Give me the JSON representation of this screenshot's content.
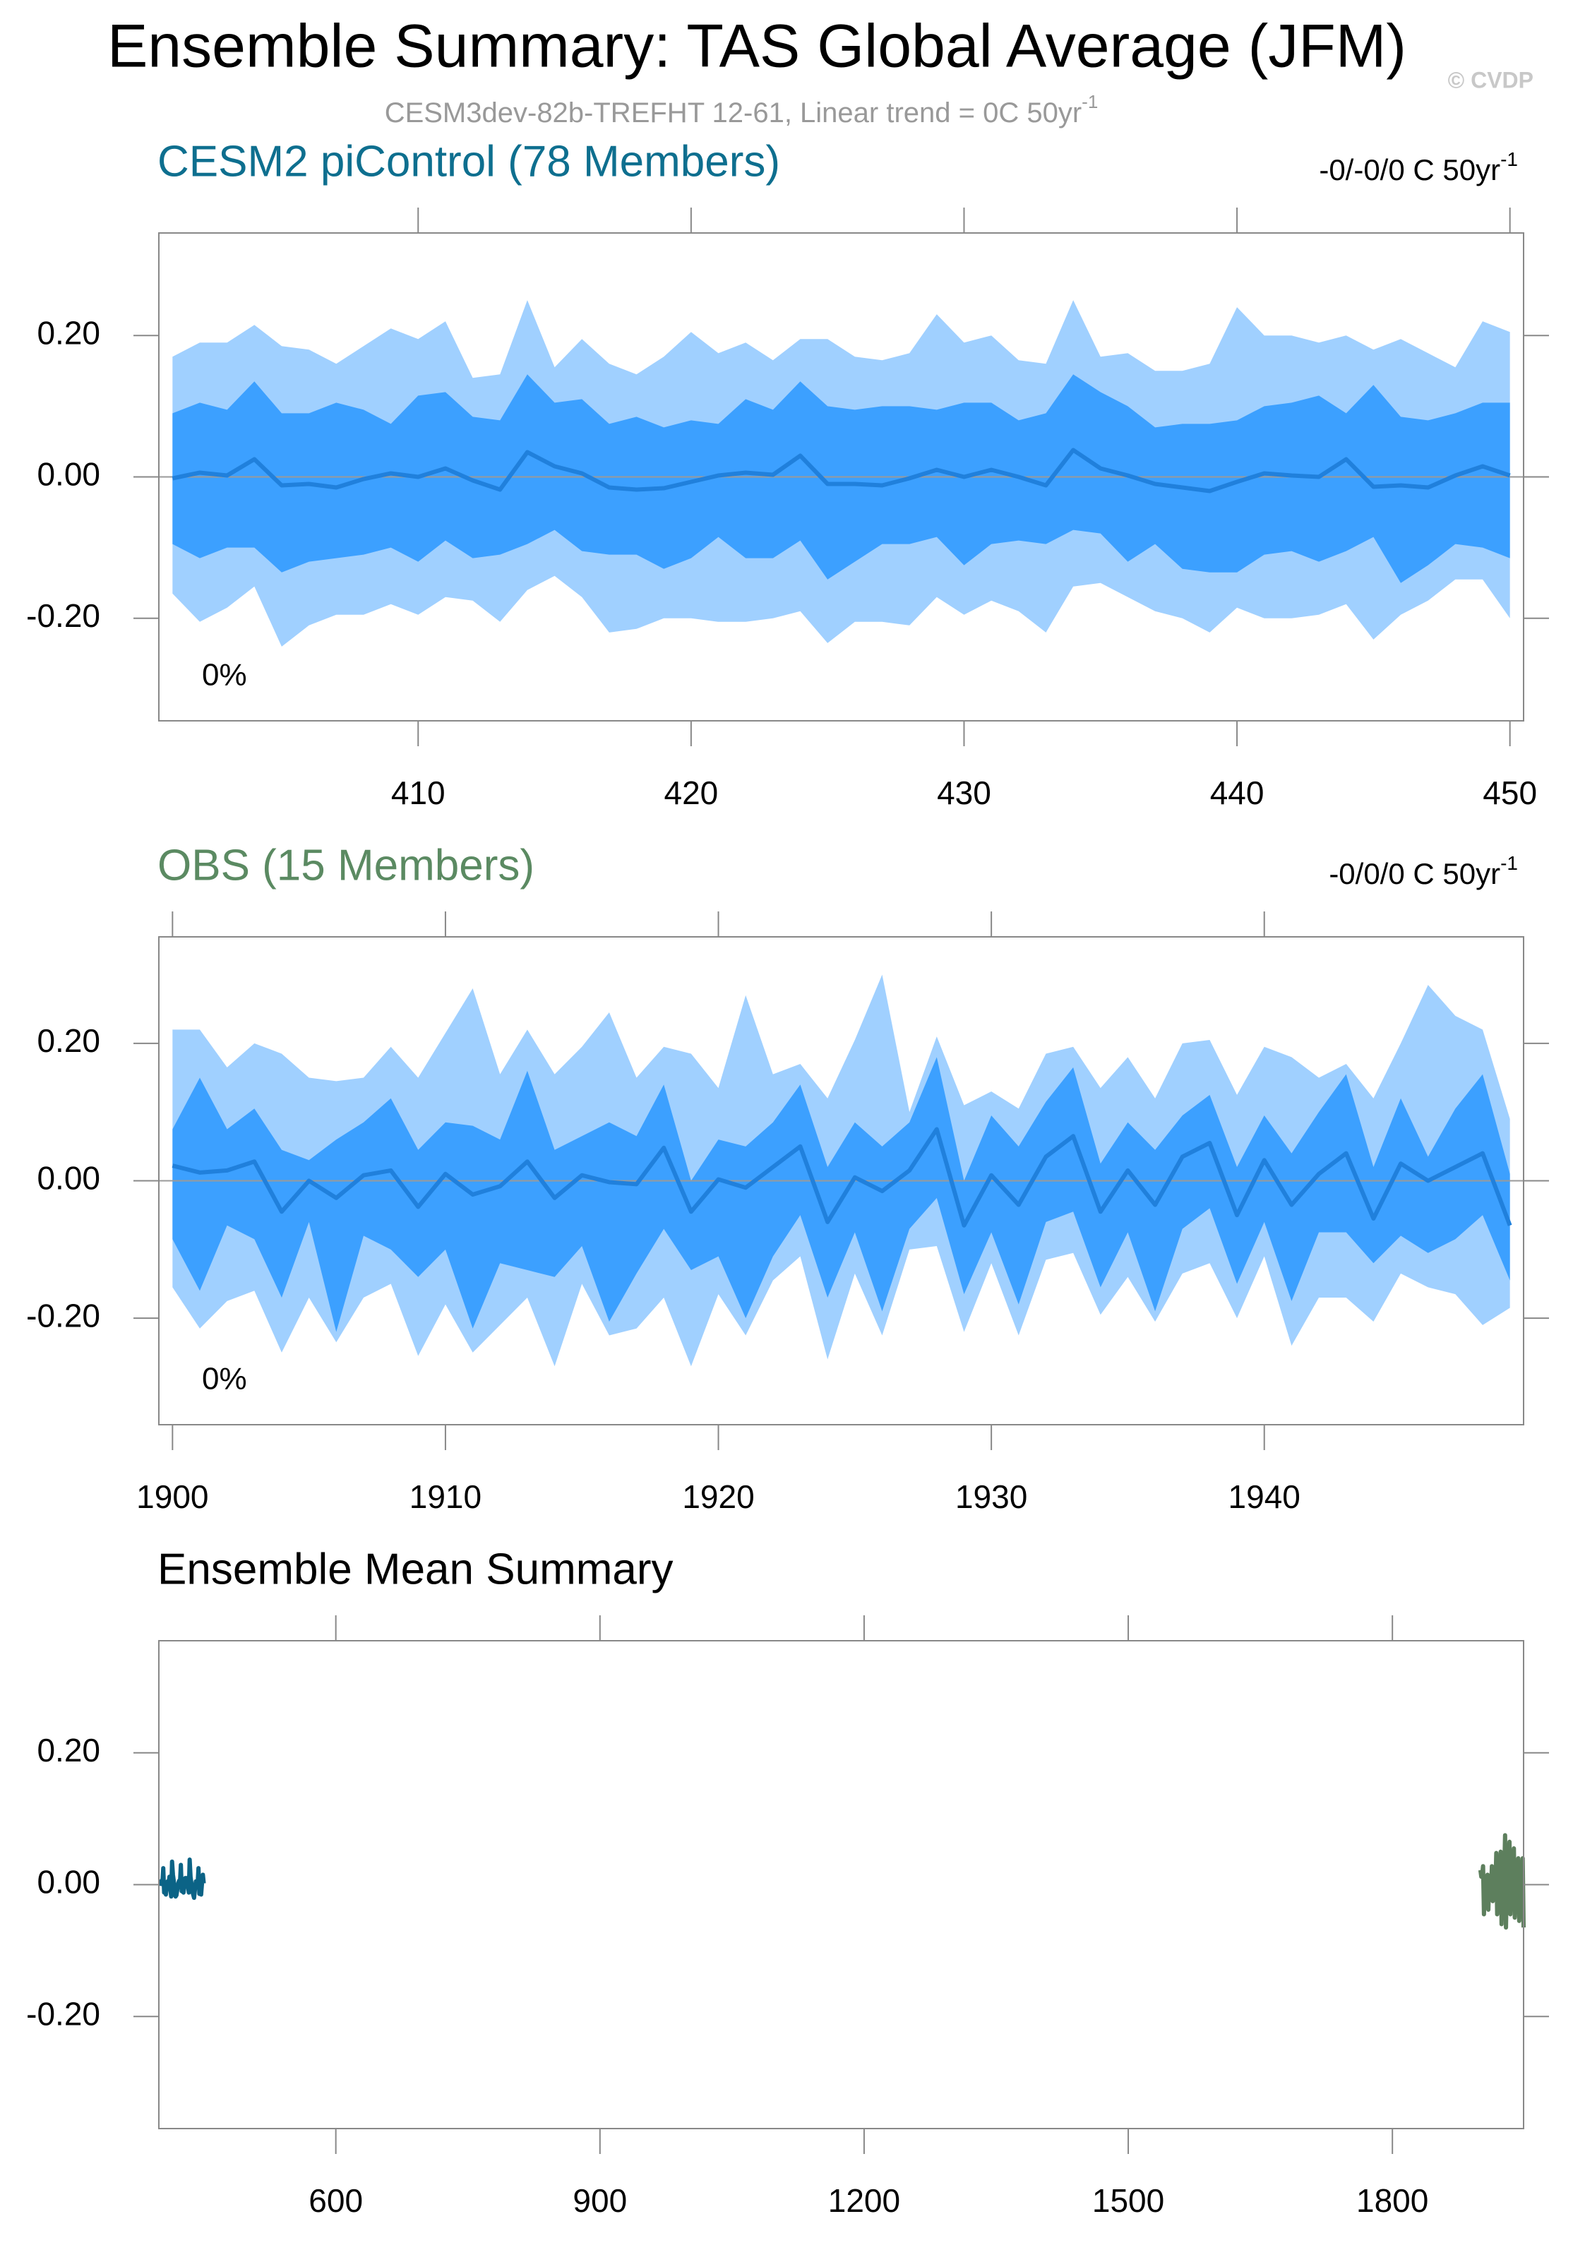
{
  "header": {
    "title": "Ensemble Summary: TAS Global Average (JFM)",
    "subtitle": "CESM3dev-82b-TREFHT 12-61, Linear trend = 0C 50yr",
    "subtitle_sup": "-1",
    "copyright": "© CVDP"
  },
  "chart_data": [
    {
      "type": "band",
      "title": "CESM2 piControl (78 Members)",
      "title_color": "#0e6f8f",
      "trend_label": "-0/-0/0 C 50yr",
      "trend_sup": "-1",
      "annotation": "0%",
      "x": [
        401,
        402,
        403,
        404,
        405,
        406,
        407,
        408,
        409,
        410,
        411,
        412,
        413,
        414,
        415,
        416,
        417,
        418,
        419,
        420,
        421,
        422,
        423,
        424,
        425,
        426,
        427,
        428,
        429,
        430,
        431,
        432,
        433,
        434,
        435,
        436,
        437,
        438,
        439,
        440,
        441,
        442,
        443,
        444,
        445,
        446,
        447,
        448,
        449,
        450
      ],
      "bands": [
        {
          "color": "#a0d0ff",
          "upper": [
            0.17,
            0.19,
            0.19,
            0.215,
            0.185,
            0.18,
            0.16,
            0.185,
            0.21,
            0.195,
            0.22,
            0.14,
            0.145,
            0.25,
            0.155,
            0.195,
            0.16,
            0.145,
            0.17,
            0.205,
            0.175,
            0.19,
            0.165,
            0.195,
            0.195,
            0.17,
            0.165,
            0.175,
            0.23,
            0.19,
            0.2,
            0.165,
            0.16,
            0.25,
            0.17,
            0.175,
            0.15,
            0.15,
            0.16,
            0.24,
            0.2,
            0.2,
            0.19,
            0.2,
            0.18,
            0.195,
            0.175,
            0.155,
            0.22,
            0.205
          ],
          "lower": [
            -0.165,
            -0.205,
            -0.185,
            -0.155,
            -0.24,
            -0.21,
            -0.195,
            -0.195,
            -0.18,
            -0.195,
            -0.17,
            -0.175,
            -0.205,
            -0.16,
            -0.14,
            -0.17,
            -0.22,
            -0.215,
            -0.2,
            -0.2,
            -0.205,
            -0.205,
            -0.2,
            -0.19,
            -0.235,
            -0.205,
            -0.205,
            -0.21,
            -0.17,
            -0.195,
            -0.175,
            -0.19,
            -0.22,
            -0.155,
            -0.15,
            -0.17,
            -0.19,
            -0.2,
            -0.22,
            -0.185,
            -0.2,
            -0.2,
            -0.195,
            -0.18,
            -0.23,
            -0.195,
            -0.175,
            -0.145,
            -0.145,
            -0.2
          ]
        },
        {
          "color": "#3ca0ff",
          "upper": [
            0.09,
            0.105,
            0.095,
            0.135,
            0.09,
            0.09,
            0.105,
            0.095,
            0.075,
            0.115,
            0.12,
            0.085,
            0.08,
            0.145,
            0.105,
            0.11,
            0.075,
            0.085,
            0.07,
            0.08,
            0.075,
            0.11,
            0.095,
            0.135,
            0.1,
            0.095,
            0.1,
            0.1,
            0.095,
            0.105,
            0.105,
            0.08,
            0.09,
            0.145,
            0.12,
            0.1,
            0.07,
            0.075,
            0.075,
            0.08,
            0.1,
            0.105,
            0.115,
            0.09,
            0.13,
            0.085,
            0.08,
            0.09,
            0.105,
            0.105
          ],
          "lower": [
            -0.095,
            -0.115,
            -0.1,
            -0.1,
            -0.135,
            -0.12,
            -0.115,
            -0.11,
            -0.1,
            -0.12,
            -0.09,
            -0.115,
            -0.11,
            -0.095,
            -0.075,
            -0.105,
            -0.11,
            -0.11,
            -0.13,
            -0.115,
            -0.085,
            -0.115,
            -0.115,
            -0.09,
            -0.145,
            -0.12,
            -0.095,
            -0.095,
            -0.085,
            -0.125,
            -0.095,
            -0.09,
            -0.095,
            -0.075,
            -0.08,
            -0.12,
            -0.095,
            -0.13,
            -0.135,
            -0.135,
            -0.11,
            -0.105,
            -0.12,
            -0.105,
            -0.085,
            -0.15,
            -0.125,
            -0.095,
            -0.1,
            -0.115
          ]
        }
      ],
      "line": {
        "color": "#2080dc",
        "values": [
          -0.002,
          0.006,
          0.002,
          0.025,
          -0.012,
          -0.01,
          -0.015,
          -0.003,
          0.005,
          0.0,
          0.012,
          -0.005,
          -0.018,
          0.035,
          0.015,
          0.005,
          -0.015,
          -0.018,
          -0.016,
          -0.007,
          0.002,
          0.006,
          0.003,
          0.03,
          -0.01,
          -0.01,
          -0.012,
          -0.002,
          0.01,
          0.0,
          0.01,
          0.0,
          -0.012,
          0.038,
          0.012,
          0.002,
          -0.01,
          -0.015,
          -0.02,
          -0.007,
          0.005,
          0.002,
          0.0,
          0.025,
          -0.014,
          -0.012,
          -0.015,
          0.002,
          0.015,
          0.002
        ]
      },
      "zero_line": true,
      "xlim": [
        400.5,
        450.5
      ],
      "xticks": [
        410,
        420,
        430,
        440,
        450
      ],
      "ylim": [
        -0.345,
        0.345
      ],
      "yticks": [
        {
          "value": 0.2,
          "label": "0.20"
        },
        {
          "value": 0,
          "label": "0.00"
        },
        {
          "value": -0.2,
          "label": "-0.20"
        }
      ]
    },
    {
      "type": "band",
      "title": "OBS (15 Members)",
      "title_color": "#5b8a62",
      "trend_label": "-0/0/0 C 50yr",
      "trend_sup": "-1",
      "annotation": "0%",
      "x": [
        1900,
        1901,
        1902,
        1903,
        1904,
        1905,
        1906,
        1907,
        1908,
        1909,
        1910,
        1911,
        1912,
        1913,
        1914,
        1915,
        1916,
        1917,
        1918,
        1919,
        1920,
        1921,
        1922,
        1923,
        1924,
        1925,
        1926,
        1927,
        1928,
        1929,
        1930,
        1931,
        1932,
        1933,
        1934,
        1935,
        1936,
        1937,
        1938,
        1939,
        1940,
        1941,
        1942,
        1943,
        1944,
        1945,
        1946,
        1947,
        1948,
        1949
      ],
      "bands": [
        {
          "color": "#a0d0ff",
          "upper": [
            0.22,
            0.22,
            0.165,
            0.2,
            0.185,
            0.15,
            0.145,
            0.15,
            0.195,
            0.15,
            0.215,
            0.28,
            0.155,
            0.22,
            0.155,
            0.195,
            0.245,
            0.15,
            0.195,
            0.185,
            0.135,
            0.27,
            0.155,
            0.17,
            0.12,
            0.205,
            0.3,
            0.1,
            0.21,
            0.11,
            0.13,
            0.105,
            0.185,
            0.195,
            0.135,
            0.18,
            0.12,
            0.2,
            0.205,
            0.125,
            0.195,
            0.18,
            0.15,
            0.17,
            0.12,
            0.2,
            0.285,
            0.24,
            0.22,
            0.09
          ],
          "lower": [
            -0.155,
            -0.215,
            -0.175,
            -0.16,
            -0.25,
            -0.17,
            -0.235,
            -0.17,
            -0.15,
            -0.255,
            -0.18,
            -0.25,
            -0.21,
            -0.17,
            -0.27,
            -0.15,
            -0.225,
            -0.215,
            -0.17,
            -0.27,
            -0.165,
            -0.225,
            -0.145,
            -0.11,
            -0.26,
            -0.135,
            -0.225,
            -0.1,
            -0.095,
            -0.22,
            -0.12,
            -0.225,
            -0.115,
            -0.105,
            -0.195,
            -0.14,
            -0.205,
            -0.135,
            -0.12,
            -0.2,
            -0.11,
            -0.24,
            -0.17,
            -0.17,
            -0.205,
            -0.135,
            -0.155,
            -0.165,
            -0.21,
            -0.185
          ]
        },
        {
          "color": "#3ca0ff",
          "upper": [
            0.075,
            0.15,
            0.075,
            0.105,
            0.045,
            0.03,
            0.06,
            0.085,
            0.12,
            0.045,
            0.085,
            0.08,
            0.06,
            0.16,
            0.045,
            0.065,
            0.085,
            0.065,
            0.14,
            0.0,
            0.06,
            0.05,
            0.085,
            0.14,
            0.02,
            0.085,
            0.05,
            0.085,
            0.18,
            0.0,
            0.095,
            0.05,
            0.115,
            0.165,
            0.025,
            0.085,
            0.045,
            0.095,
            0.125,
            0.02,
            0.095,
            0.04,
            0.1,
            0.155,
            0.02,
            0.12,
            0.035,
            0.105,
            0.155,
            0.01
          ],
          "lower": [
            -0.085,
            -0.16,
            -0.065,
            -0.085,
            -0.17,
            -0.06,
            -0.22,
            -0.08,
            -0.1,
            -0.14,
            -0.1,
            -0.215,
            -0.12,
            -0.13,
            -0.14,
            -0.095,
            -0.205,
            -0.135,
            -0.07,
            -0.13,
            -0.11,
            -0.2,
            -0.11,
            -0.05,
            -0.17,
            -0.075,
            -0.19,
            -0.07,
            -0.025,
            -0.165,
            -0.075,
            -0.18,
            -0.06,
            -0.045,
            -0.155,
            -0.075,
            -0.19,
            -0.07,
            -0.04,
            -0.15,
            -0.06,
            -0.175,
            -0.075,
            -0.075,
            -0.12,
            -0.08,
            -0.105,
            -0.085,
            -0.05,
            -0.145
          ]
        }
      ],
      "line": {
        "color": "#2080dc",
        "values": [
          0.022,
          0.012,
          0.015,
          0.028,
          -0.045,
          0.0,
          -0.025,
          0.008,
          0.015,
          -0.038,
          0.01,
          -0.02,
          -0.008,
          0.028,
          -0.025,
          0.008,
          -0.002,
          -0.005,
          0.048,
          -0.045,
          0.002,
          -0.01,
          0.02,
          0.05,
          -0.06,
          0.005,
          -0.015,
          0.015,
          0.075,
          -0.065,
          0.008,
          -0.035,
          0.035,
          0.065,
          -0.045,
          0.015,
          -0.035,
          0.035,
          0.055,
          -0.05,
          0.03,
          -0.035,
          0.01,
          0.04,
          -0.055,
          0.025,
          0.0,
          0.02,
          0.04,
          -0.065
        ]
      },
      "zero_line": true,
      "xlim": [
        1899.5,
        1949.5
      ],
      "xticks": [
        1900,
        1910,
        1920,
        1930,
        1940
      ],
      "ylim": [
        -0.355,
        0.355
      ],
      "yticks": [
        {
          "value": 0.2,
          "label": "0.20"
        },
        {
          "value": 0,
          "label": "0.00"
        },
        {
          "value": -0.2,
          "label": "-0.20"
        }
      ]
    },
    {
      "type": "line",
      "title": "Ensemble Mean Summary",
      "title_color": "#000000",
      "series": [
        {
          "color": "#0b6386",
          "x": [
            401,
            402,
            403,
            404,
            405,
            406,
            407,
            408,
            409,
            410,
            411,
            412,
            413,
            414,
            415,
            416,
            417,
            418,
            419,
            420,
            421,
            422,
            423,
            424,
            425,
            426,
            427,
            428,
            429,
            430,
            431,
            432,
            433,
            434,
            435,
            436,
            437,
            438,
            439,
            440,
            441,
            442,
            443,
            444,
            445,
            446,
            447,
            448,
            449,
            450
          ],
          "values": [
            -0.002,
            0.006,
            0.002,
            0.025,
            -0.012,
            -0.01,
            -0.015,
            -0.003,
            0.005,
            0.0,
            0.012,
            -0.005,
            -0.018,
            0.035,
            0.015,
            0.005,
            -0.015,
            -0.018,
            -0.016,
            -0.007,
            0.002,
            0.006,
            0.003,
            0.03,
            -0.01,
            -0.01,
            -0.012,
            -0.002,
            0.01,
            0.0,
            0.01,
            0.0,
            -0.012,
            0.038,
            0.012,
            0.002,
            -0.01,
            -0.015,
            -0.02,
            -0.007,
            0.005,
            0.002,
            0.0,
            0.025,
            -0.014,
            -0.012,
            -0.015,
            0.002,
            0.015,
            0.002
          ]
        },
        {
          "color": "#5d7f5d",
          "x": [
            1900,
            1901,
            1902,
            1903,
            1904,
            1905,
            1906,
            1907,
            1908,
            1909,
            1910,
            1911,
            1912,
            1913,
            1914,
            1915,
            1916,
            1917,
            1918,
            1919,
            1920,
            1921,
            1922,
            1923,
            1924,
            1925,
            1926,
            1927,
            1928,
            1929,
            1930,
            1931,
            1932,
            1933,
            1934,
            1935,
            1936,
            1937,
            1938,
            1939,
            1940,
            1941,
            1942,
            1943,
            1944,
            1945,
            1946,
            1947,
            1948,
            1949
          ],
          "values": [
            0.022,
            0.012,
            0.015,
            0.028,
            -0.045,
            0.0,
            -0.025,
            0.008,
            0.015,
            -0.038,
            0.01,
            -0.02,
            -0.008,
            0.028,
            -0.025,
            0.008,
            -0.002,
            -0.005,
            0.048,
            -0.045,
            0.002,
            -0.01,
            0.02,
            0.05,
            -0.06,
            0.005,
            -0.015,
            0.015,
            0.075,
            -0.065,
            0.008,
            -0.035,
            0.035,
            0.065,
            -0.045,
            0.015,
            -0.035,
            0.035,
            0.055,
            -0.05,
            0.03,
            -0.035,
            0.01,
            0.04,
            -0.055,
            0.025,
            0.0,
            0.02,
            0.04,
            -0.065
          ]
        }
      ],
      "zero_line": false,
      "xlim": [
        399,
        1949
      ],
      "xticks": [
        600,
        900,
        1200,
        1500,
        1800
      ],
      "ylim": [
        -0.37,
        0.37
      ],
      "yticks": [
        {
          "value": 0.2,
          "label": "0.20"
        },
        {
          "value": 0,
          "label": "0.00"
        },
        {
          "value": -0.2,
          "label": "-0.20"
        }
      ]
    }
  ]
}
